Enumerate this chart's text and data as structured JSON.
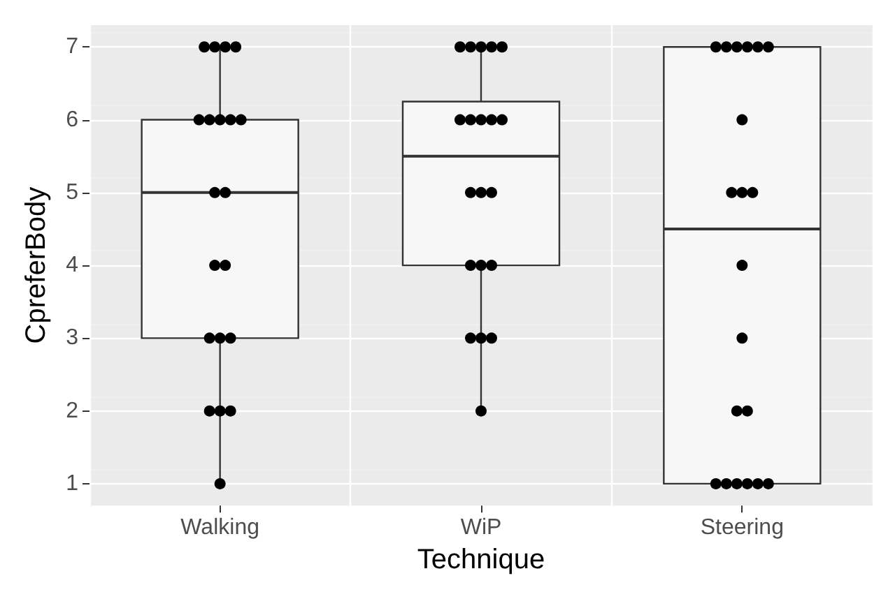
{
  "chart_data": {
    "type": "box",
    "xlabel": "Technique",
    "ylabel": "CpreferBody",
    "categories": [
      "Walking",
      "WiP",
      "Steering"
    ],
    "ylim": [
      0.7,
      7.3
    ],
    "yticks": [
      1,
      2,
      3,
      4,
      5,
      6,
      7
    ],
    "grid": true,
    "boxes": [
      {
        "low": 1,
        "q1": 3,
        "median": 5,
        "q3": 6,
        "high": 7
      },
      {
        "low": 2,
        "q1": 4,
        "median": 5.5,
        "q3": 6.25,
        "high": 7
      },
      {
        "low": 1,
        "q1": 1,
        "median": 4.5,
        "q3": 7,
        "high": 7
      }
    ],
    "series": [
      {
        "type": "scatter",
        "color": "#000000",
        "marker": "circle",
        "x": [
          "Walking",
          "Walking",
          "Walking",
          "Walking",
          "Walking",
          "Walking",
          "Walking",
          "Walking",
          "Walking",
          "Walking",
          "Walking",
          "Walking",
          "Walking",
          "Walking",
          "Walking",
          "Walking",
          "Walking",
          "Walking",
          "Walking",
          "Walking",
          "WiP",
          "WiP",
          "WiP",
          "WiP",
          "WiP",
          "WiP",
          "WiP",
          "WiP",
          "WiP",
          "WiP",
          "WiP",
          "WiP",
          "WiP",
          "WiP",
          "WiP",
          "WiP",
          "WiP",
          "WiP",
          "WiP",
          "WiP",
          "Steering",
          "Steering",
          "Steering",
          "Steering",
          "Steering",
          "Steering",
          "Steering",
          "Steering",
          "Steering",
          "Steering",
          "Steering",
          "Steering",
          "Steering",
          "Steering",
          "Steering",
          "Steering",
          "Steering",
          "Steering",
          "Steering",
          "Steering"
        ],
        "values": [
          7,
          7,
          7,
          7,
          6,
          6,
          6,
          6,
          6,
          5,
          5,
          4,
          4,
          3,
          3,
          3,
          2,
          2,
          2,
          1,
          7,
          7,
          7,
          7,
          7,
          6,
          6,
          6,
          6,
          6,
          5,
          5,
          5,
          4,
          4,
          4,
          3,
          3,
          3,
          2,
          7,
          7,
          7,
          7,
          7,
          7,
          6,
          5,
          5,
          5,
          4,
          3,
          2,
          2,
          1,
          1,
          1,
          1,
          1,
          1
        ]
      }
    ]
  }
}
